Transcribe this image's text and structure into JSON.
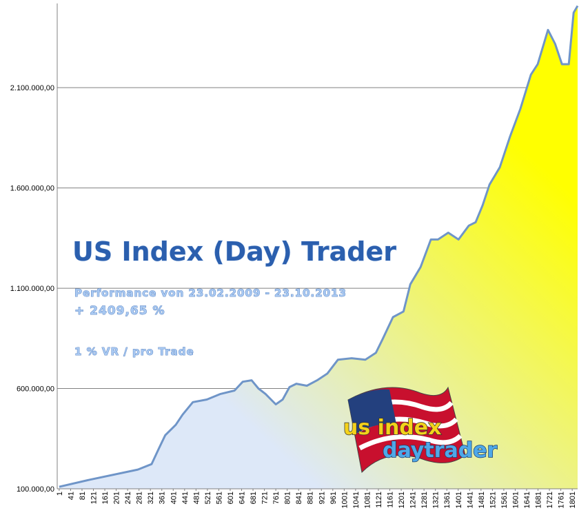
{
  "chart_data": {
    "type": "area",
    "title": "US Index (Day) Trader",
    "subtitle": "Performance  von  23.02.2009 - 23.10.2013",
    "annotations": [
      "+ 2409,65 %",
      "1 % VR / pro Trade"
    ],
    "logo_text": [
      "us index",
      "daytrader"
    ],
    "x": [
      1,
      107,
      277,
      325,
      350,
      373,
      410,
      434,
      470,
      519,
      567,
      616,
      645,
      676,
      700,
      725,
      761,
      785,
      809,
      833,
      870,
      906,
      942,
      979,
      1027,
      1075,
      1112,
      1136,
      1172,
      1209,
      1233,
      1269,
      1305,
      1330,
      1366,
      1402,
      1438,
      1462,
      1487,
      1511,
      1547,
      1583,
      1619,
      1656,
      1680,
      1716,
      1741,
      1765,
      1789,
      1806,
      1820
    ],
    "values": [
      110000,
      145000,
      196000,
      223000,
      299000,
      367000,
      419000,
      470000,
      532000,
      545000,
      573000,
      590000,
      634000,
      641000,
      600000,
      573000,
      521000,
      545000,
      607000,
      624000,
      614000,
      641000,
      675000,
      744000,
      751000,
      744000,
      778000,
      847000,
      956000,
      984000,
      1120000,
      1206000,
      1343000,
      1343000,
      1377000,
      1343000,
      1412000,
      1429000,
      1515000,
      1617000,
      1703000,
      1857000,
      1994000,
      2165000,
      2217000,
      2388000,
      2319000,
      2217000,
      2217000,
      2474000,
      2508000
    ],
    "color": "#6f95c8",
    "fill_colors": [
      "#ffff00",
      "#dde8f8"
    ],
    "xlim": [
      -6,
      1820
    ],
    "ylim": [
      100000,
      2520000
    ],
    "xticks": [
      1,
      41,
      81,
      121,
      161,
      201,
      241,
      281,
      321,
      361,
      401,
      441,
      481,
      521,
      561,
      601,
      641,
      681,
      721,
      761,
      801,
      841,
      881,
      921,
      961,
      1001,
      1041,
      1081,
      1121,
      1161,
      1201,
      1241,
      1281,
      1321,
      1361,
      1401,
      1441,
      1481,
      1521,
      1561,
      1601,
      1641,
      1681,
      1721,
      1761,
      1801
    ],
    "yticks": [
      {
        "value": 100000,
        "label": "100.000,00"
      },
      {
        "value": 600000,
        "label": "600.000,00"
      },
      {
        "value": 1100000,
        "label": "1.100.000,00"
      },
      {
        "value": 1600000,
        "label": "1.600.000,00"
      },
      {
        "value": 2100000,
        "label": "2.100.000,00"
      }
    ],
    "grid": true
  }
}
